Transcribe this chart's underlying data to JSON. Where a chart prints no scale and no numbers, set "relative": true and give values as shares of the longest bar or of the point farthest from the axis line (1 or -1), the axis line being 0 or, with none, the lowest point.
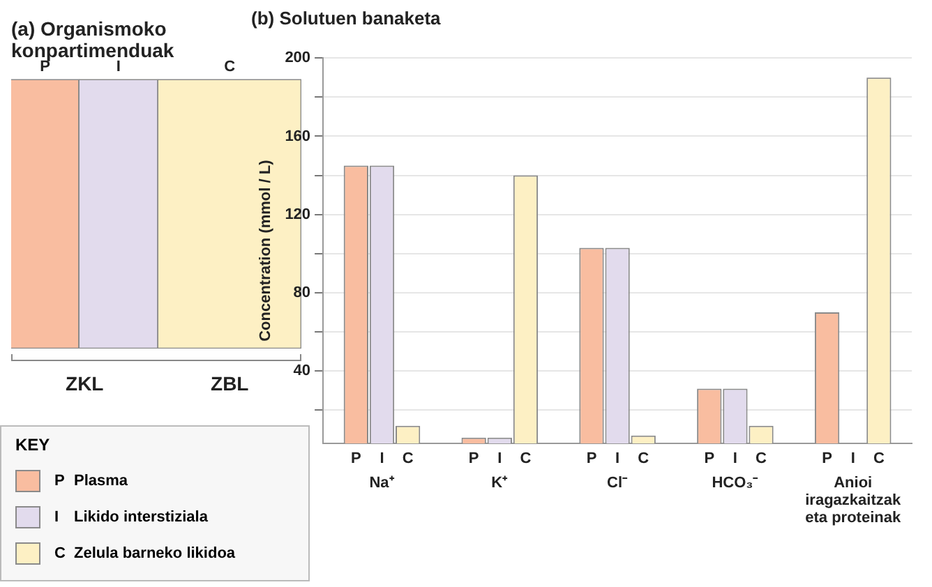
{
  "chart_data": [
    {
      "type": "bar",
      "title": "(a) Organismoko konpartimenduak",
      "orientation": "horizontal",
      "stacked": true,
      "relative": true,
      "categories": [
        null
      ],
      "series": [
        {
          "name": "P",
          "color": "#f9bda0",
          "values": [
            0.234
          ]
        },
        {
          "name": "I",
          "color": "#e2dbed",
          "values": [
            0.272
          ]
        },
        {
          "name": "C",
          "color": "#fdf0c4",
          "values": [
            0.494
          ]
        }
      ],
      "annotations": [
        "ZKL",
        "ZBL"
      ]
    },
    {
      "type": "bar",
      "title": "(b) Solutuen banaketa",
      "ylabel": "Concentration (mmol / L)",
      "legend_title": "KEY",
      "legend": "bottom left",
      "grid": "y",
      "categories": [
        "Na⁺",
        "K⁺",
        "Cl⁻",
        "HCO₃⁻",
        "Anioi iragazkaitzak eta proteinak"
      ],
      "series": [
        {
          "name": "Plasma",
          "color": "#f9bda0",
          "values": [
            145,
            6,
            103,
            31,
            70
          ]
        },
        {
          "name": "Likido interstiziala",
          "color": "#e2dbed",
          "values": [
            145,
            6,
            103,
            31,
            null
          ]
        },
        {
          "name": "Zelula barneko likidoa",
          "color": "#fdf0c4",
          "values": [
            12,
            140,
            7,
            12,
            190
          ]
        }
      ],
      "ylim": [
        3,
        200
      ],
      "yticks": [
        {
          "value": 20,
          "label": null
        },
        40,
        {
          "value": 60,
          "label": null
        },
        80,
        {
          "value": 100,
          "label": null
        },
        120,
        {
          "value": 140,
          "label": null
        },
        160,
        {
          "value": 180,
          "label": null
        },
        200
      ],
      "annotations": [
        "P",
        "I",
        "C"
      ]
    }
  ]
}
